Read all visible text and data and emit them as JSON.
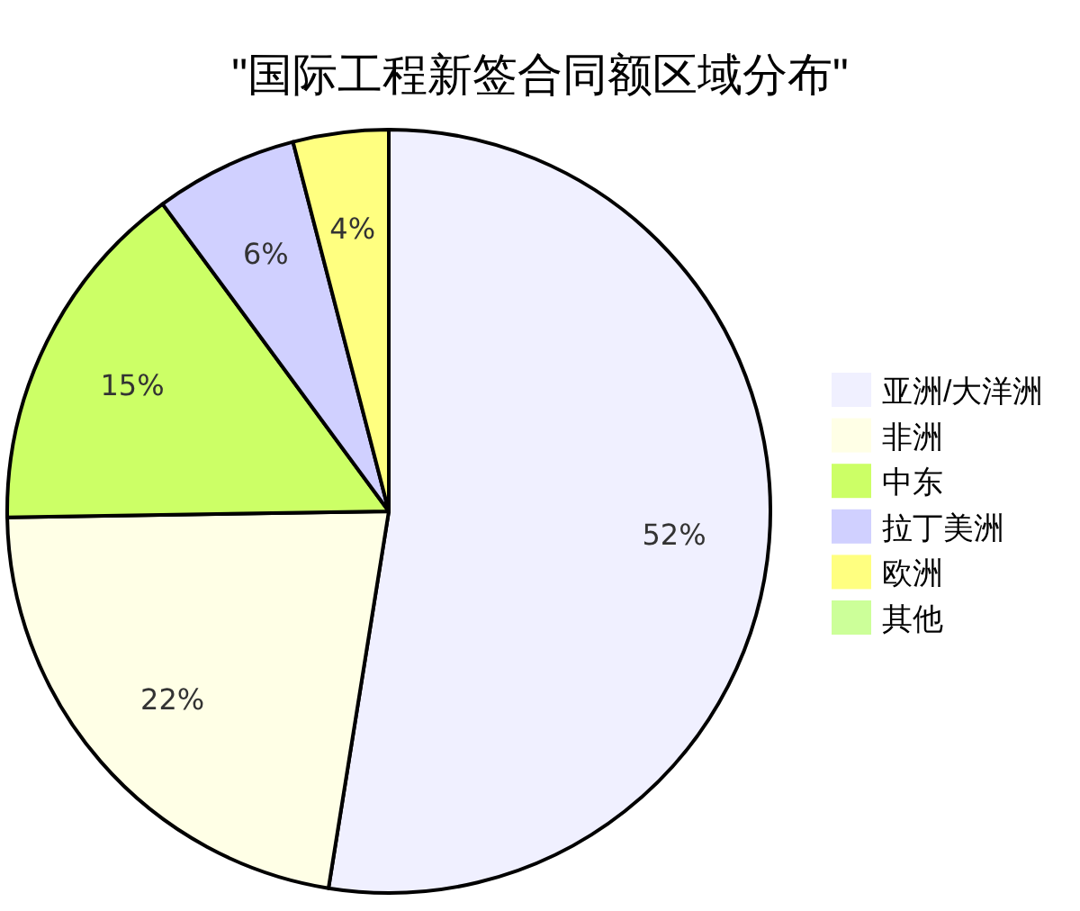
{
  "chart_data": {
    "type": "pie",
    "title": "\"国际工程新签合同额区域分布\"",
    "categories": [
      "亚洲/大洋洲",
      "非洲",
      "中东",
      "拉丁美洲",
      "欧洲",
      "其他"
    ],
    "values": [
      52,
      22,
      15,
      6,
      4,
      0
    ],
    "value_labels": [
      "52%",
      "22%",
      "15%",
      "6%",
      "4%",
      null
    ],
    "colors": [
      "#f0f0ff",
      "#ffffe6",
      "#ccff66",
      "#d0d0ff",
      "#ffff80",
      "#ccff99"
    ],
    "legend": "right"
  }
}
